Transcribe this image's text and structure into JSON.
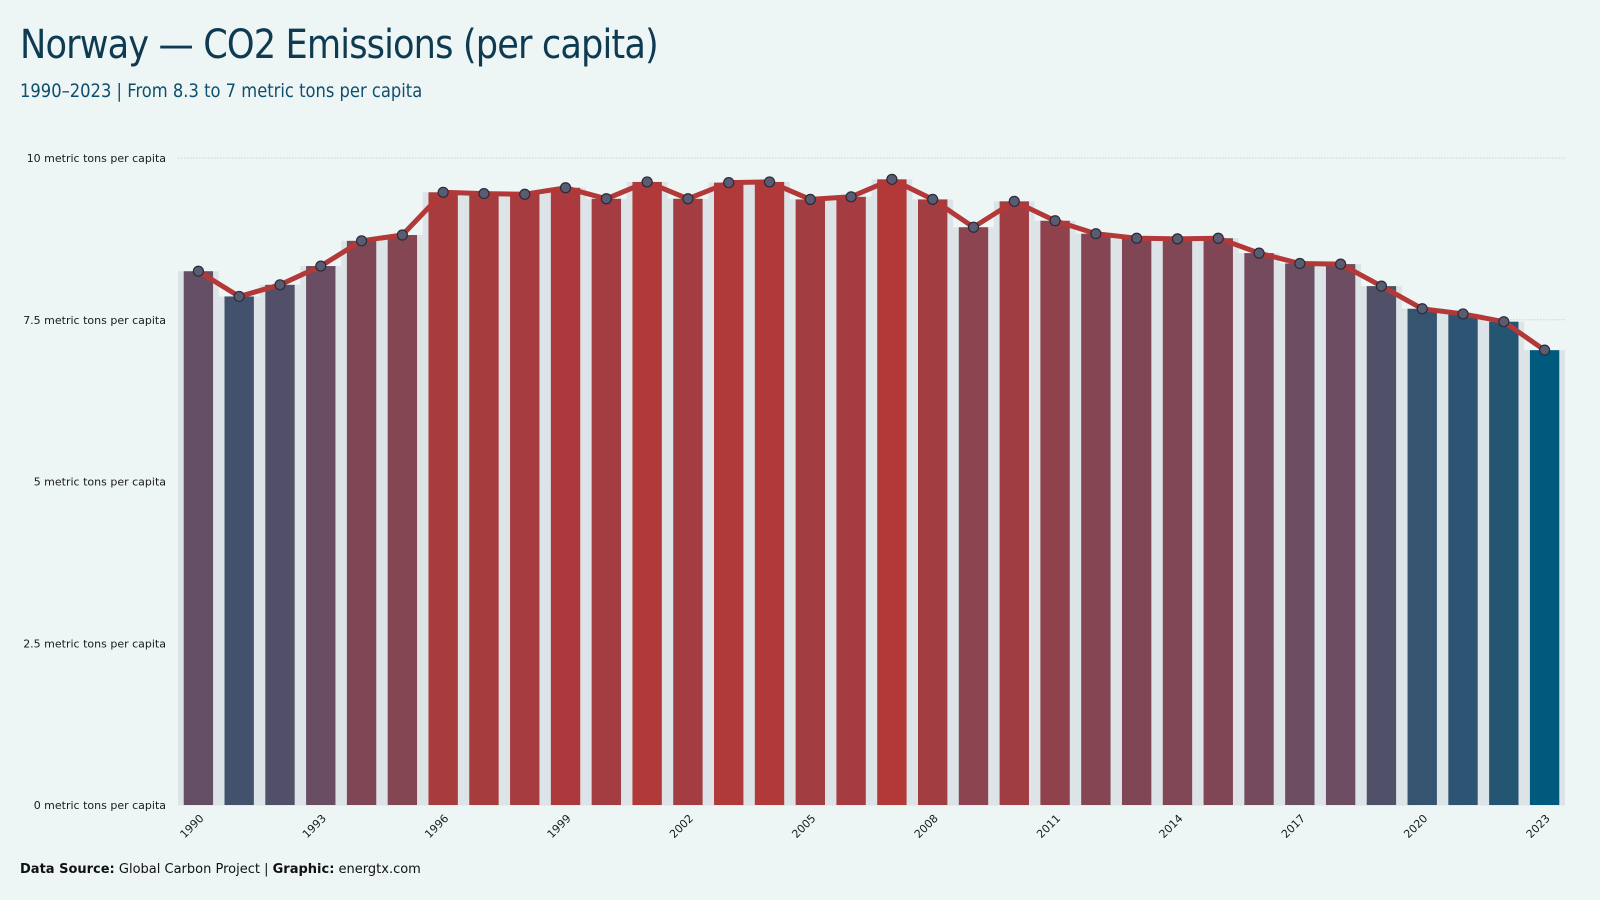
{
  "title": "Norway — CO2 Emissions (per capita)",
  "subtitle": "1990–2023 | From 8.3 to 7 metric tons per capita",
  "caption": {
    "source_label": "Data Source:",
    "source_value": "Global Carbon Project",
    "separator": "|",
    "graphic_label": "Graphic:",
    "graphic_value": "energtx.com"
  },
  "chart_data": {
    "type": "bar",
    "overlay": "line",
    "x": [
      1990,
      1991,
      1992,
      1993,
      1994,
      1995,
      1996,
      1997,
      1998,
      1999,
      2000,
      2001,
      2002,
      2003,
      2004,
      2005,
      2006,
      2007,
      2008,
      2009,
      2010,
      2011,
      2012,
      2013,
      2014,
      2015,
      2016,
      2017,
      2018,
      2019,
      2020,
      2021,
      2022,
      2023
    ],
    "values": [
      8.25,
      7.86,
      8.04,
      8.33,
      8.72,
      8.81,
      9.47,
      9.45,
      9.44,
      9.54,
      9.37,
      9.63,
      9.37,
      9.62,
      9.63,
      9.36,
      9.4,
      9.67,
      9.36,
      8.93,
      9.33,
      9.03,
      8.83,
      8.76,
      8.75,
      8.76,
      8.53,
      8.37,
      8.36,
      8.02,
      7.67,
      7.59,
      7.47,
      7.03
    ],
    "x_tick_labels": [
      "1990",
      "1993",
      "1996",
      "1999",
      "2002",
      "2005",
      "2008",
      "2011",
      "2014",
      "2017",
      "2020",
      "2023"
    ],
    "y_ticks": [
      0,
      2.5,
      5,
      7.5,
      10
    ],
    "y_tick_labels": [
      "0 metric tons per capita",
      "2.5 metric tons per capita",
      "5 metric tons per capita",
      "7.5 metric tons per capita",
      "10 metric tons per capita"
    ],
    "ylim": [
      0,
      10
    ],
    "grid": true,
    "legend": "none",
    "colors": {
      "low": "#005a7d",
      "mid": "#6b4d62",
      "high": "#b33838",
      "line": "#b33838",
      "marker_fill": "#5a5d72",
      "marker_stroke": "#2a2a3a",
      "grid": "#c9d2d6",
      "bar_band": "#dde4e7"
    }
  }
}
